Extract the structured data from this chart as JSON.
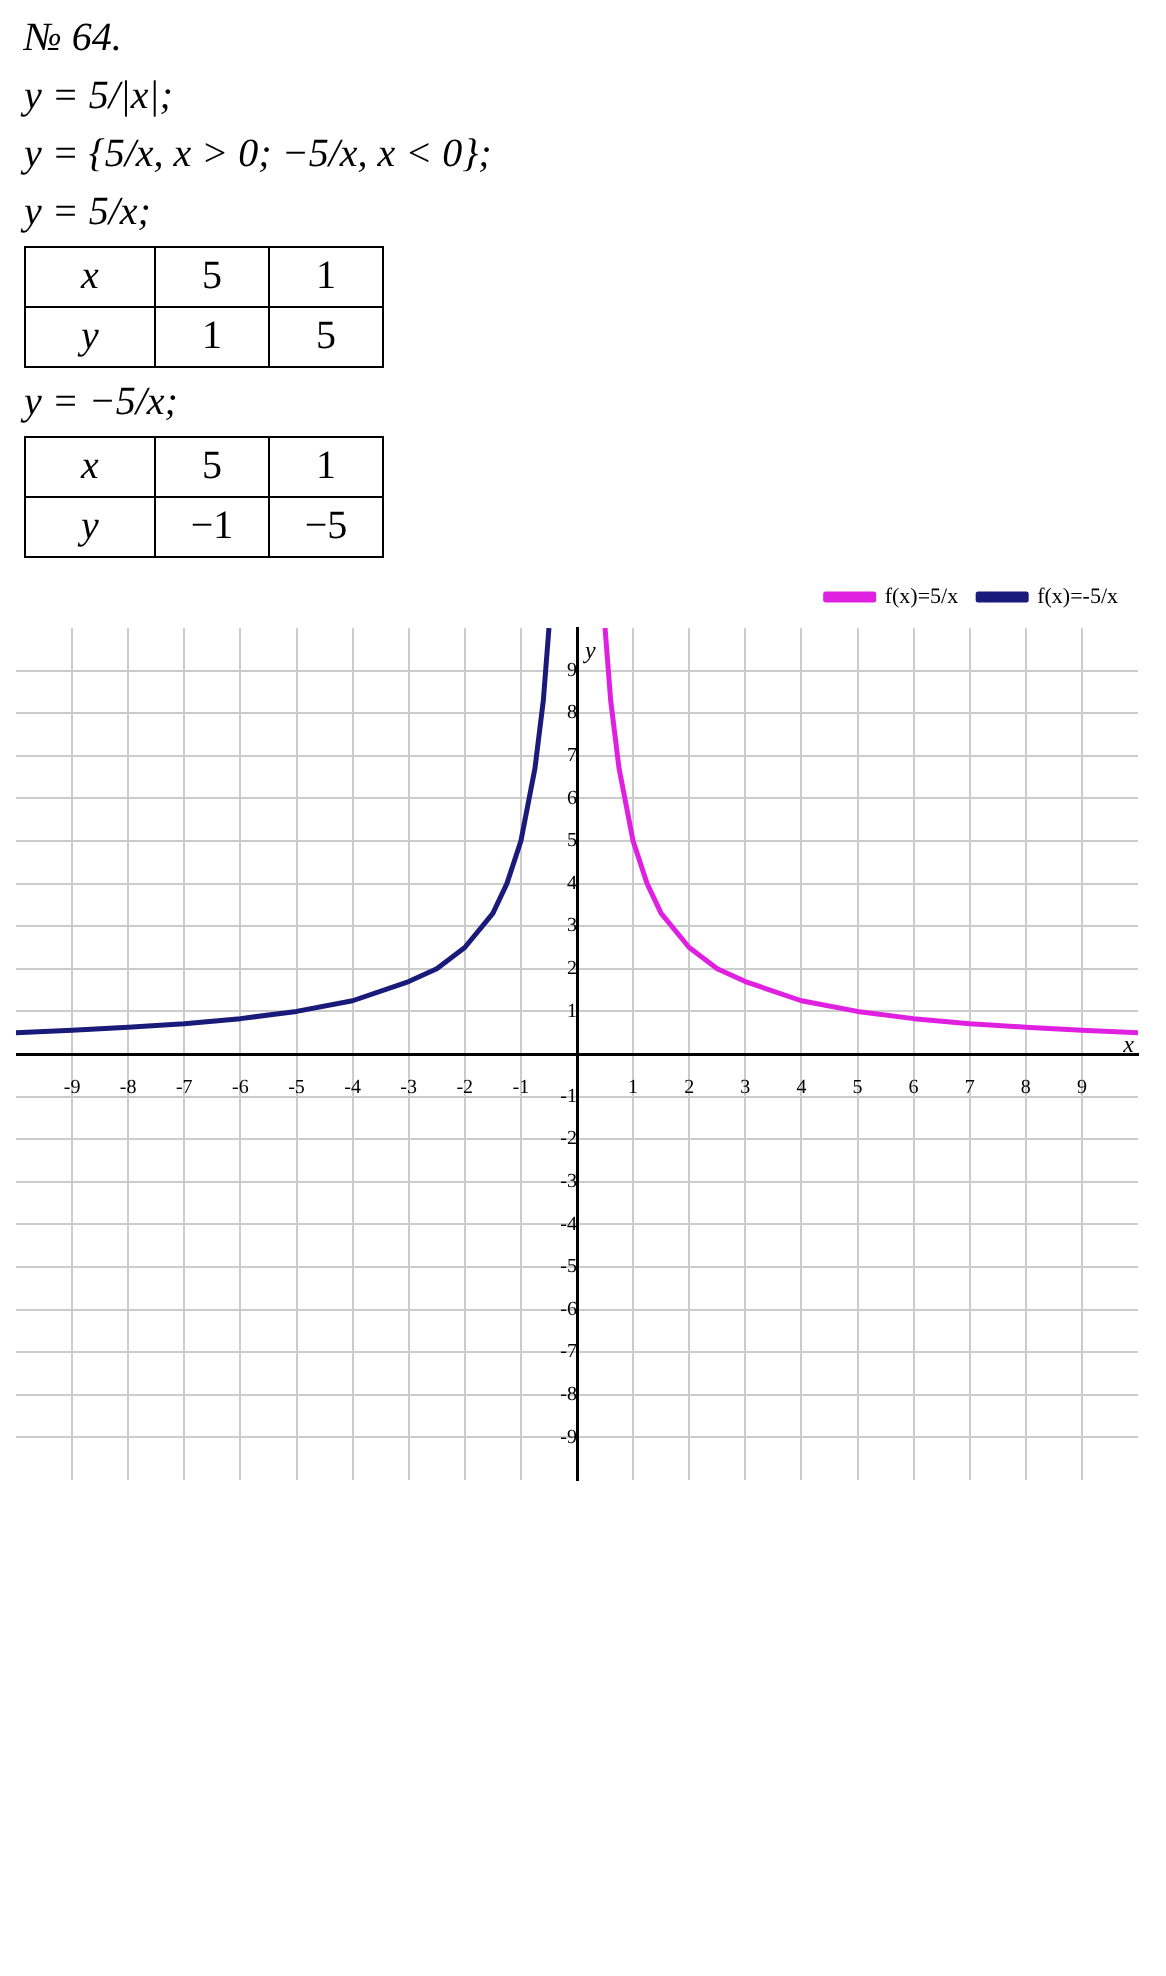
{
  "chart_data": {
    "type": "line",
    "annotations": [
      "№ 64.",
      "y = 5/|x|;",
      "y = {5/x, x > 0; −5/x, x < 0};",
      "y = 5/x;",
      "x  5  1",
      "y  1  5",
      "y = −5/x;",
      "x  5  1",
      "y  −1  −5"
    ],
    "xlabel": "x",
    "ylabel": "y",
    "xlim": [
      -10,
      10
    ],
    "ylim": [
      -10,
      10
    ],
    "xticks": [
      -9,
      -8,
      -7,
      -6,
      -5,
      -4,
      -3,
      -2,
      -1,
      1,
      2,
      3,
      4,
      5,
      6,
      7,
      8,
      9
    ],
    "yticks": [
      -9,
      -8,
      -7,
      -6,
      -5,
      -4,
      -3,
      -2,
      -1,
      1,
      2,
      3,
      4,
      5,
      6,
      7,
      8,
      9
    ],
    "grid": true,
    "legend": "top right",
    "marker": "none",
    "line_style": "solid",
    "series": [
      {
        "name": "f(x)=5/x",
        "color": "#e020e0",
        "x": [
          0.5,
          0.6,
          0.75,
          1,
          1.25,
          1.5,
          2,
          2.5,
          3,
          4,
          5,
          6,
          7,
          8,
          9,
          10
        ],
        "values": [
          10,
          8.3,
          6.7,
          5,
          4,
          3.3,
          2.5,
          2,
          1.7,
          1.25,
          1,
          0.83,
          0.71,
          0.63,
          0.56,
          0.5
        ]
      },
      {
        "name": "f(x)=-5/x",
        "color": "#1a1a7a",
        "x": [
          -10,
          -9,
          -8,
          -7,
          -6,
          -5,
          -4,
          -3,
          -2.5,
          -2,
          -1.5,
          -1.25,
          -1,
          -0.75,
          -0.6,
          -0.5
        ],
        "values": [
          0.5,
          0.56,
          0.63,
          0.71,
          0.83,
          1,
          1.25,
          1.7,
          2,
          2.5,
          3.3,
          4,
          5,
          6.7,
          8.3,
          10
        ]
      }
    ]
  }
}
